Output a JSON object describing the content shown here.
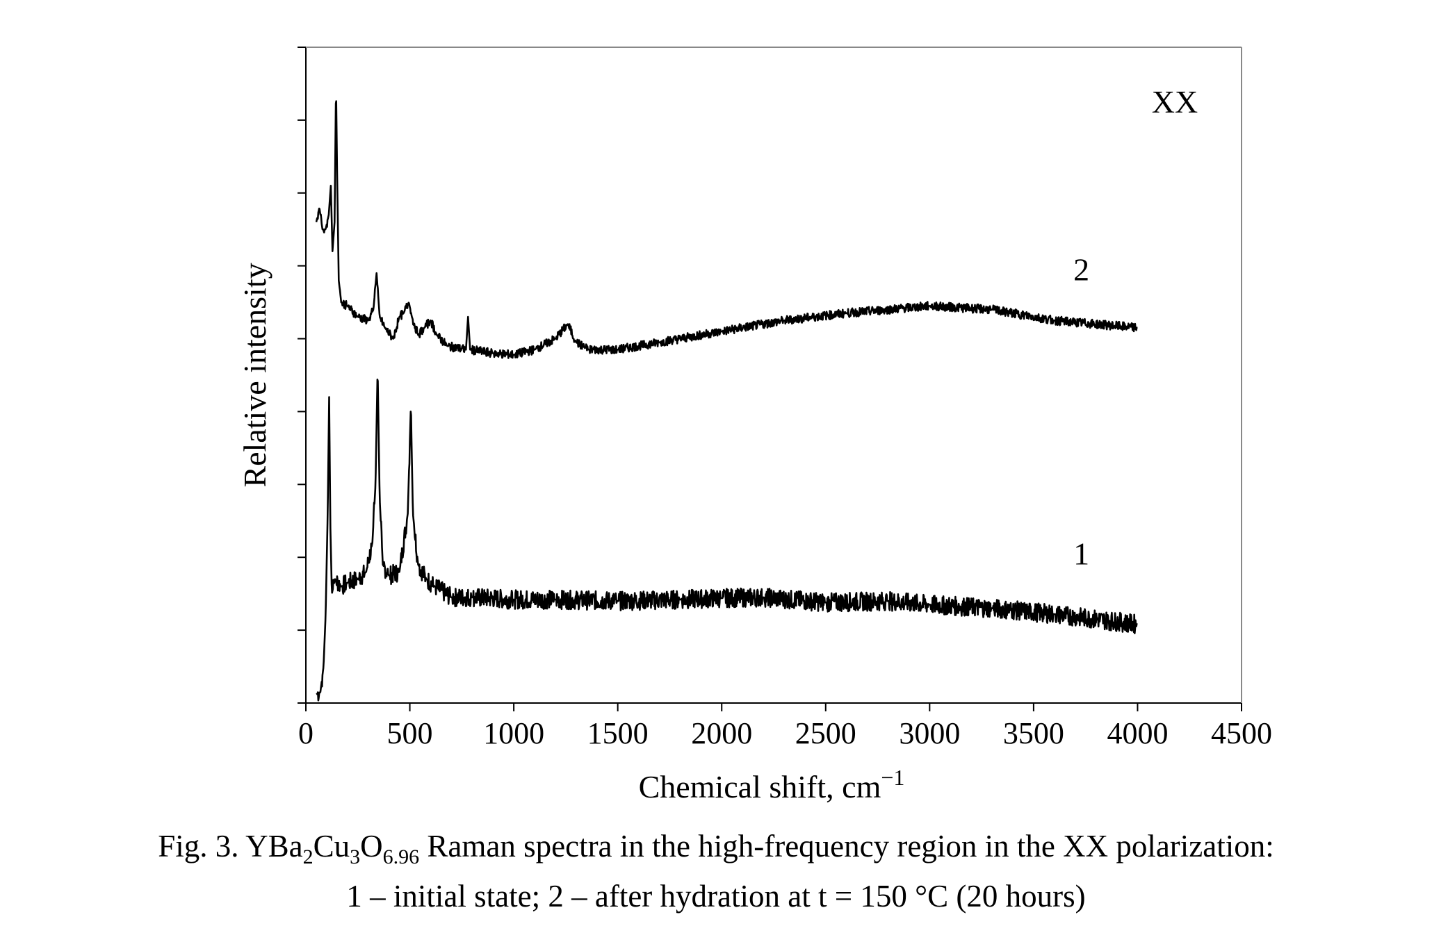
{
  "caption": {
    "prefix": "Fig. 3. YBa",
    "sub1": "2",
    "mid1": "Cu",
    "sub2": "3",
    "mid2": "O",
    "sub3": "6.96",
    "suffix": " Raman spectra in the high-frequency region in the XX polarization:",
    "line2": "1 – initial state; 2 – after hydration at t = 150 °C (20 hours)"
  },
  "chart_data": {
    "type": "line",
    "title": "",
    "annotation": "XX",
    "xlabel": "Chemical shift, cm",
    "xlabel_sup": "−1",
    "ylabel": "Relative intensity",
    "xlim": [
      0,
      4500
    ],
    "ylim": [
      0,
      9
    ],
    "x_ticks": [
      0,
      500,
      1000,
      1500,
      2000,
      2500,
      3000,
      3500,
      4000,
      4500
    ],
    "y_ticks": [
      0,
      1,
      2,
      3,
      4,
      5,
      6,
      7,
      8,
      9
    ],
    "y_tick_labels_shown": false,
    "grid": false,
    "series": [
      {
        "name": "1",
        "color": "#000000",
        "noise": 0.13,
        "points": [
          [
            50,
            0.12
          ],
          [
            70,
            0.15
          ],
          [
            85,
            0.5
          ],
          [
            95,
            1.2
          ],
          [
            105,
            2.6
          ],
          [
            112,
            4.2
          ],
          [
            118,
            2.4
          ],
          [
            125,
            1.5
          ],
          [
            140,
            1.7
          ],
          [
            170,
            1.6
          ],
          [
            200,
            1.65
          ],
          [
            250,
            1.7
          ],
          [
            290,
            1.8
          ],
          [
            320,
            2.2
          ],
          [
            335,
            3.0
          ],
          [
            345,
            4.6
          ],
          [
            355,
            2.8
          ],
          [
            370,
            1.9
          ],
          [
            400,
            1.75
          ],
          [
            450,
            1.8
          ],
          [
            490,
            2.6
          ],
          [
            505,
            4.1
          ],
          [
            515,
            2.6
          ],
          [
            540,
            1.9
          ],
          [
            580,
            1.7
          ],
          [
            620,
            1.6
          ],
          [
            700,
            1.45
          ],
          [
            800,
            1.45
          ],
          [
            1000,
            1.42
          ],
          [
            1200,
            1.42
          ],
          [
            1500,
            1.4
          ],
          [
            1800,
            1.42
          ],
          [
            2000,
            1.44
          ],
          [
            2200,
            1.45
          ],
          [
            2500,
            1.38
          ],
          [
            2800,
            1.4
          ],
          [
            3000,
            1.35
          ],
          [
            3300,
            1.3
          ],
          [
            3600,
            1.22
          ],
          [
            4000,
            1.08
          ]
        ]
      },
      {
        "name": "2",
        "color": "#000000",
        "noise": 0.06,
        "points": [
          [
            50,
            6.6
          ],
          [
            65,
            6.8
          ],
          [
            80,
            6.5
          ],
          [
            95,
            6.5
          ],
          [
            110,
            6.7
          ],
          [
            120,
            7.1
          ],
          [
            128,
            6.2
          ],
          [
            138,
            6.6
          ],
          [
            145,
            8.5
          ],
          [
            150,
            7.3
          ],
          [
            158,
            5.8
          ],
          [
            170,
            5.5
          ],
          [
            200,
            5.45
          ],
          [
            250,
            5.3
          ],
          [
            300,
            5.25
          ],
          [
            325,
            5.4
          ],
          [
            340,
            5.9
          ],
          [
            355,
            5.3
          ],
          [
            380,
            5.15
          ],
          [
            420,
            5.0
          ],
          [
            450,
            5.3
          ],
          [
            470,
            5.35
          ],
          [
            495,
            5.5
          ],
          [
            510,
            5.3
          ],
          [
            540,
            5.05
          ],
          [
            570,
            5.15
          ],
          [
            600,
            5.25
          ],
          [
            630,
            5.05
          ],
          [
            680,
            4.9
          ],
          [
            770,
            4.85
          ],
          [
            780,
            5.3
          ],
          [
            790,
            4.85
          ],
          [
            900,
            4.8
          ],
          [
            1000,
            4.78
          ],
          [
            1100,
            4.85
          ],
          [
            1200,
            5.0
          ],
          [
            1260,
            5.2
          ],
          [
            1300,
            4.95
          ],
          [
            1360,
            4.85
          ],
          [
            1500,
            4.85
          ],
          [
            1700,
            4.95
          ],
          [
            2000,
            5.1
          ],
          [
            2300,
            5.25
          ],
          [
            2600,
            5.35
          ],
          [
            3000,
            5.45
          ],
          [
            3300,
            5.4
          ],
          [
            3600,
            5.25
          ],
          [
            4000,
            5.15
          ]
        ]
      }
    ],
    "curve_labels": [
      {
        "text": "1",
        "x": 3730,
        "y": 1.9
      },
      {
        "text": "2",
        "x": 3730,
        "y": 5.8
      }
    ]
  }
}
